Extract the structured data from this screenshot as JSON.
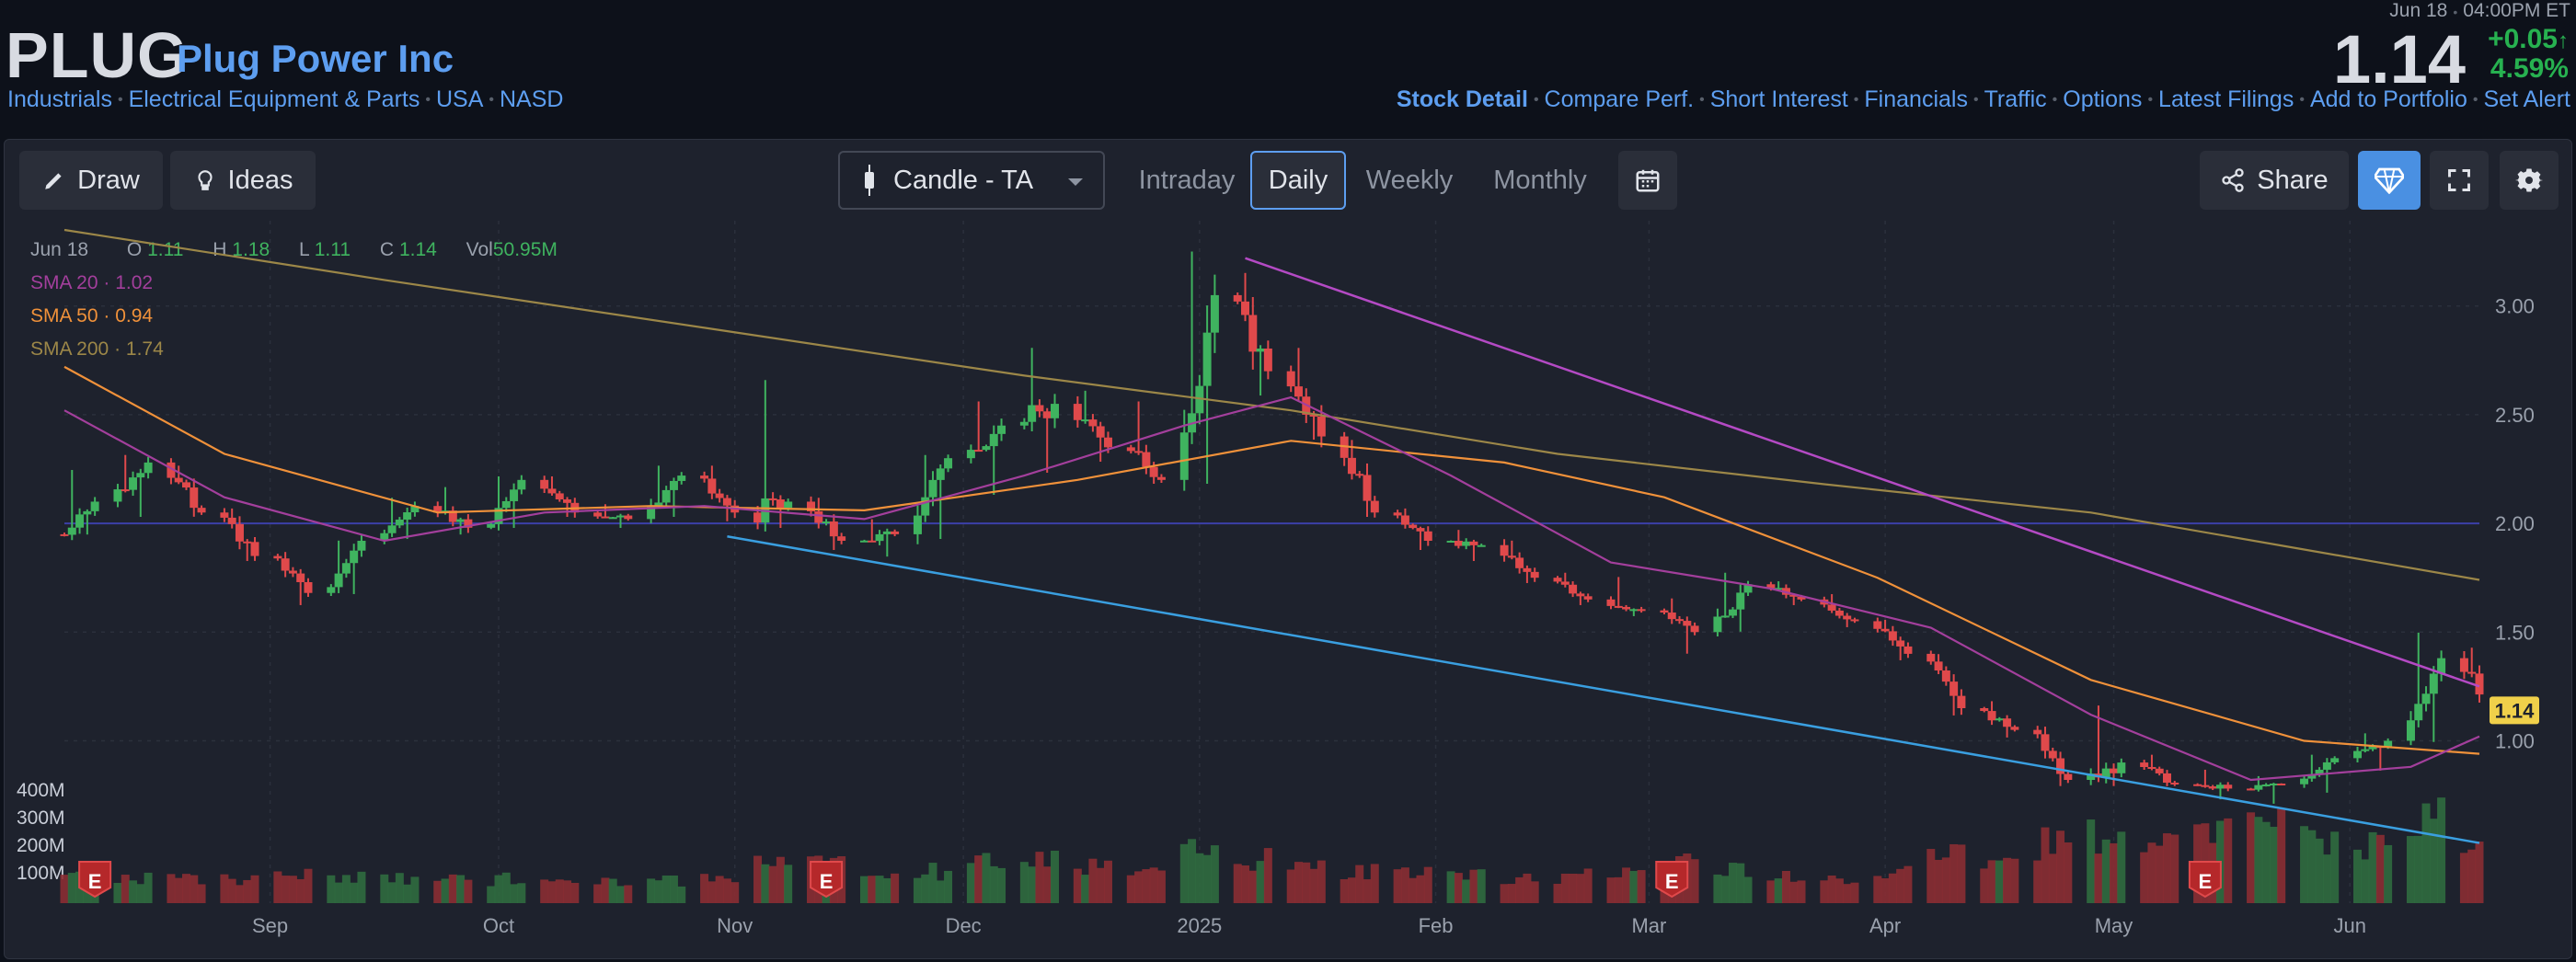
{
  "header": {
    "ticker": "PLUG",
    "company": "Plug Power Inc",
    "breadcrumbs": [
      "Industrials",
      "Electrical Equipment & Parts",
      "USA",
      "NASD"
    ],
    "quote_date": "Jun 18",
    "quote_time": "04:00PM ET",
    "price": "1.14",
    "change": "+0.05",
    "change_pct": "4.59%",
    "links": [
      "Stock Detail",
      "Compare Perf.",
      "Short Interest",
      "Financials",
      "Traffic",
      "Options",
      "Latest Filings",
      "Add to Portfolio",
      "Set Alert"
    ]
  },
  "toolbar": {
    "draw": "Draw",
    "ideas": "Ideas",
    "chart_type": "Candle - TA",
    "tabs": [
      "Intraday",
      "Daily",
      "Weekly",
      "Monthly"
    ],
    "selected_tab": "Daily",
    "share": "Share"
  },
  "legend": {
    "date": "Jun 18",
    "o_label": "O",
    "o": "1.11",
    "h_label": "H",
    "h": "1.18",
    "l_label": "L",
    "l": "1.11",
    "c_label": "C",
    "c": "1.14",
    "vol_label": "Vol",
    "vol": "50.95M",
    "sma20_label": "SMA 20",
    "sma20": "1.02",
    "sma50_label": "SMA 50",
    "sma50": "0.94",
    "sma200_label": "SMA 200",
    "sma200": "1.74"
  },
  "colors": {
    "up": "#3fb35f",
    "down": "#e0494b",
    "sma20": "#a33f9c",
    "sma50": "#f0913a",
    "sma200": "#9c8748",
    "trend_upper": "#b44ac4",
    "trend_lower": "#3a9fe0",
    "level_line": "#3b3fa8",
    "price_tag": "#f0d04a"
  },
  "chart_data": {
    "type": "candlestick",
    "x_tick_labels": [
      "Sep",
      "Oct",
      "Nov",
      "Dec",
      "2025",
      "Feb",
      "Mar",
      "Apr",
      "May",
      "Jun"
    ],
    "y_ticks": [
      1.0,
      1.5,
      2.0,
      2.5,
      3.0
    ],
    "y_tick_labels": [
      "1.00",
      "1.50",
      "2.00",
      "2.50",
      "3.00"
    ],
    "ylim": [
      0.6,
      3.35
    ],
    "volume_ticks": [
      "100M",
      "200M",
      "300M",
      "400M"
    ],
    "last_price_label": "1.14",
    "horizontal_level": 2.0,
    "earnings_markers": [
      "E",
      "E",
      "E",
      "E"
    ],
    "earnings_at": [
      "2024-08-09",
      "2024-11-13",
      "2025-03-04",
      "2025-05-13"
    ],
    "trendlines": [
      {
        "from": [
          "2025-01-07",
          3.22
        ],
        "to": [
          "2025-06-18",
          1.25
        ]
      },
      {
        "from": [
          "2024-10-31",
          1.94
        ],
        "to": [
          "2025-06-18",
          0.53
        ]
      }
    ],
    "candles_weekly": [
      {
        "d": "2024-08-05",
        "o": 1.95,
        "h": 2.28,
        "l": 1.92,
        "c": 2.1,
        "v": 95
      },
      {
        "d": "2024-08-12",
        "o": 2.1,
        "h": 2.35,
        "l": 2.0,
        "c": 2.28,
        "v": 80
      },
      {
        "d": "2024-08-19",
        "o": 2.28,
        "h": 2.3,
        "l": 2.02,
        "c": 2.05,
        "v": 70
      },
      {
        "d": "2024-08-26",
        "o": 2.05,
        "h": 2.1,
        "l": 1.8,
        "c": 1.85,
        "v": 75
      },
      {
        "d": "2024-09-02",
        "o": 1.85,
        "h": 1.88,
        "l": 1.6,
        "c": 1.68,
        "v": 85
      },
      {
        "d": "2024-09-09",
        "o": 1.68,
        "h": 1.95,
        "l": 1.65,
        "c": 1.92,
        "v": 80
      },
      {
        "d": "2024-09-16",
        "o": 1.92,
        "h": 2.15,
        "l": 1.9,
        "c": 2.08,
        "v": 70
      },
      {
        "d": "2024-09-23",
        "o": 2.08,
        "h": 2.2,
        "l": 1.92,
        "c": 1.98,
        "v": 72
      },
      {
        "d": "2024-09-30",
        "o": 1.98,
        "h": 2.25,
        "l": 1.95,
        "c": 2.2,
        "v": 70
      },
      {
        "d": "2024-10-07",
        "o": 2.2,
        "h": 2.25,
        "l": 2.0,
        "c": 2.05,
        "v": 65
      },
      {
        "d": "2024-10-14",
        "o": 2.05,
        "h": 2.12,
        "l": 1.95,
        "c": 2.02,
        "v": 60
      },
      {
        "d": "2024-10-21",
        "o": 2.02,
        "h": 2.3,
        "l": 2.0,
        "c": 2.22,
        "v": 70
      },
      {
        "d": "2024-10-28",
        "o": 2.22,
        "h": 2.3,
        "l": 1.98,
        "c": 2.05,
        "v": 70
      },
      {
        "d": "2024-11-04",
        "o": 2.05,
        "h": 2.7,
        "l": 1.95,
        "c": 2.1,
        "v": 110
      },
      {
        "d": "2024-11-11",
        "o": 2.1,
        "h": 2.15,
        "l": 1.85,
        "c": 1.92,
        "v": 115
      },
      {
        "d": "2024-11-18",
        "o": 1.92,
        "h": 2.05,
        "l": 1.82,
        "c": 1.95,
        "v": 80
      },
      {
        "d": "2024-11-25",
        "o": 1.95,
        "h": 2.35,
        "l": 1.9,
        "c": 2.3,
        "v": 95
      },
      {
        "d": "2024-12-02",
        "o": 2.3,
        "h": 2.6,
        "l": 2.1,
        "c": 2.45,
        "v": 120
      },
      {
        "d": "2024-12-09",
        "o": 2.45,
        "h": 2.85,
        "l": 2.2,
        "c": 2.55,
        "v": 140
      },
      {
        "d": "2024-12-16",
        "o": 2.55,
        "h": 2.65,
        "l": 2.25,
        "c": 2.35,
        "v": 110
      },
      {
        "d": "2024-12-23",
        "o": 2.35,
        "h": 2.6,
        "l": 2.15,
        "c": 2.2,
        "v": 90
      },
      {
        "d": "2024-12-30",
        "o": 2.2,
        "h": 3.3,
        "l": 2.15,
        "c": 3.05,
        "v": 150
      },
      {
        "d": "2025-01-06",
        "o": 3.05,
        "h": 3.2,
        "l": 2.55,
        "c": 2.7,
        "v": 130
      },
      {
        "d": "2025-01-13",
        "o": 2.7,
        "h": 2.85,
        "l": 2.35,
        "c": 2.4,
        "v": 110
      },
      {
        "d": "2025-01-20",
        "o": 2.4,
        "h": 2.42,
        "l": 2.0,
        "c": 2.05,
        "v": 100
      },
      {
        "d": "2025-01-27",
        "o": 2.05,
        "h": 2.1,
        "l": 1.85,
        "c": 1.92,
        "v": 85
      },
      {
        "d": "2025-02-03",
        "o": 1.92,
        "h": 2.0,
        "l": 1.8,
        "c": 1.9,
        "v": 80
      },
      {
        "d": "2025-02-10",
        "o": 1.9,
        "h": 1.95,
        "l": 1.7,
        "c": 1.75,
        "v": 75
      },
      {
        "d": "2025-02-17",
        "o": 1.75,
        "h": 1.8,
        "l": 1.6,
        "c": 1.65,
        "v": 80
      },
      {
        "d": "2025-02-24",
        "o": 1.65,
        "h": 1.78,
        "l": 1.55,
        "c": 1.6,
        "v": 85
      },
      {
        "d": "2025-03-03",
        "o": 1.6,
        "h": 1.68,
        "l": 1.38,
        "c": 1.5,
        "v": 120
      },
      {
        "d": "2025-03-10",
        "o": 1.5,
        "h": 1.8,
        "l": 1.48,
        "c": 1.72,
        "v": 95
      },
      {
        "d": "2025-03-17",
        "o": 1.72,
        "h": 1.76,
        "l": 1.6,
        "c": 1.65,
        "v": 75
      },
      {
        "d": "2025-03-24",
        "o": 1.65,
        "h": 1.7,
        "l": 1.5,
        "c": 1.55,
        "v": 70
      },
      {
        "d": "2025-03-31",
        "o": 1.55,
        "h": 1.58,
        "l": 1.35,
        "c": 1.4,
        "v": 90
      },
      {
        "d": "2025-04-07",
        "o": 1.4,
        "h": 1.42,
        "l": 1.1,
        "c": 1.15,
        "v": 150
      },
      {
        "d": "2025-04-14",
        "o": 1.15,
        "h": 1.2,
        "l": 1.0,
        "c": 1.05,
        "v": 120
      },
      {
        "d": "2025-04-21",
        "o": 1.05,
        "h": 1.08,
        "l": 0.78,
        "c": 0.82,
        "v": 180
      },
      {
        "d": "2025-04-28",
        "o": 0.82,
        "h": 1.18,
        "l": 0.78,
        "c": 0.9,
        "v": 200
      },
      {
        "d": "2025-05-05",
        "o": 0.9,
        "h": 0.95,
        "l": 0.78,
        "c": 0.8,
        "v": 160
      },
      {
        "d": "2025-05-12",
        "o": 0.8,
        "h": 0.88,
        "l": 0.72,
        "c": 0.78,
        "v": 210
      },
      {
        "d": "2025-05-19",
        "o": 0.78,
        "h": 0.85,
        "l": 0.7,
        "c": 0.8,
        "v": 260
      },
      {
        "d": "2025-05-26",
        "o": 0.8,
        "h": 0.95,
        "l": 0.75,
        "c": 0.92,
        "v": 200
      },
      {
        "d": "2025-06-02",
        "o": 0.92,
        "h": 1.05,
        "l": 0.85,
        "c": 1.0,
        "v": 180
      },
      {
        "d": "2025-06-09",
        "o": 1.0,
        "h": 1.52,
        "l": 0.98,
        "c": 1.38,
        "v": 260
      },
      {
        "d": "2025-06-16",
        "o": 1.38,
        "h": 1.45,
        "l": 1.05,
        "c": 1.14,
        "v": 160
      }
    ],
    "sma20": [
      [
        "2024-08-05",
        2.52
      ],
      [
        "2024-08-26",
        2.12
      ],
      [
        "2024-09-16",
        1.92
      ],
      [
        "2024-10-07",
        2.05
      ],
      [
        "2024-10-28",
        2.08
      ],
      [
        "2024-11-18",
        2.02
      ],
      [
        "2024-12-09",
        2.22
      ],
      [
        "2024-12-30",
        2.45
      ],
      [
        "2025-01-13",
        2.58
      ],
      [
        "2025-02-03",
        2.22
      ],
      [
        "2025-02-24",
        1.82
      ],
      [
        "2025-03-17",
        1.7
      ],
      [
        "2025-04-07",
        1.52
      ],
      [
        "2025-04-28",
        1.12
      ],
      [
        "2025-05-19",
        0.82
      ],
      [
        "2025-06-09",
        0.88
      ],
      [
        "2025-06-18",
        1.02
      ]
    ],
    "sma50": [
      [
        "2024-08-05",
        2.72
      ],
      [
        "2024-08-26",
        2.32
      ],
      [
        "2024-09-23",
        2.05
      ],
      [
        "2024-10-21",
        2.08
      ],
      [
        "2024-11-18",
        2.06
      ],
      [
        "2024-12-16",
        2.2
      ],
      [
        "2025-01-13",
        2.38
      ],
      [
        "2025-02-10",
        2.28
      ],
      [
        "2025-03-03",
        2.12
      ],
      [
        "2025-03-31",
        1.75
      ],
      [
        "2025-04-28",
        1.28
      ],
      [
        "2025-05-26",
        1.0
      ],
      [
        "2025-06-18",
        0.94
      ]
    ],
    "sma200": [
      [
        "2024-08-05",
        3.35
      ],
      [
        "2024-09-16",
        3.12
      ],
      [
        "2024-10-28",
        2.9
      ],
      [
        "2024-12-09",
        2.68
      ],
      [
        "2025-01-13",
        2.52
      ],
      [
        "2025-02-17",
        2.32
      ],
      [
        "2025-03-24",
        2.18
      ],
      [
        "2025-04-28",
        2.05
      ],
      [
        "2025-05-26",
        1.88
      ],
      [
        "2025-06-18",
        1.74
      ]
    ]
  }
}
